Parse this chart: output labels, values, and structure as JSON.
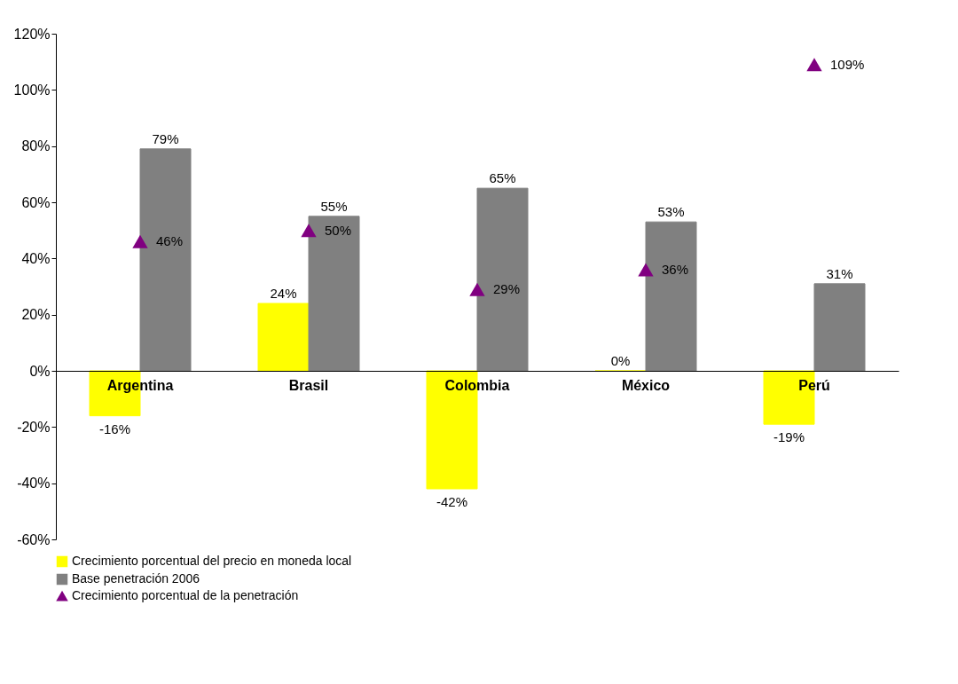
{
  "chart_data": {
    "type": "bar",
    "categories": [
      "Argentina",
      "Brasil",
      "Colombia",
      "México",
      "Perú"
    ],
    "series": [
      {
        "name": "Crecimiento porcentual del precio en moneda local",
        "color": "#ffff00",
        "values": [
          -16,
          24,
          -42,
          0,
          -19
        ],
        "value_labels": [
          "-16%",
          "24%",
          "-42%",
          "0%",
          "-19%"
        ]
      },
      {
        "name": "Base penetración 2006",
        "color": "#808080",
        "values": [
          79,
          55,
          65,
          53,
          31
        ],
        "value_labels": [
          "79%",
          "55%",
          "65%",
          "53%",
          "31%"
        ]
      },
      {
        "name": "Crecimiento porcentual de la penetración",
        "type": "scatter",
        "color": "#800080",
        "x": [
          "Argentina",
          "Brasil",
          "Colombia",
          "México",
          "Perú"
        ],
        "values": [
          46,
          50,
          29,
          36,
          109
        ],
        "value_labels": [
          "46%",
          "50%",
          "29%",
          "36%",
          "109%"
        ]
      }
    ],
    "ylim": [
      -60,
      120
    ],
    "yticks": [
      {
        "value": -60,
        "label": "-60%"
      },
      {
        "value": -40,
        "label": "-40%"
      },
      {
        "value": -20,
        "label": "-20%"
      },
      {
        "value": 0,
        "label": "0%"
      },
      {
        "value": 20,
        "label": "20%"
      },
      {
        "value": 40,
        "label": "40%"
      },
      {
        "value": 60,
        "label": "60%"
      },
      {
        "value": 80,
        "label": "80%"
      },
      {
        "value": 100,
        "label": "100%"
      },
      {
        "value": 120,
        "label": "120%"
      }
    ],
    "marker": "triangle",
    "legend": "bottom",
    "grid": false
  }
}
